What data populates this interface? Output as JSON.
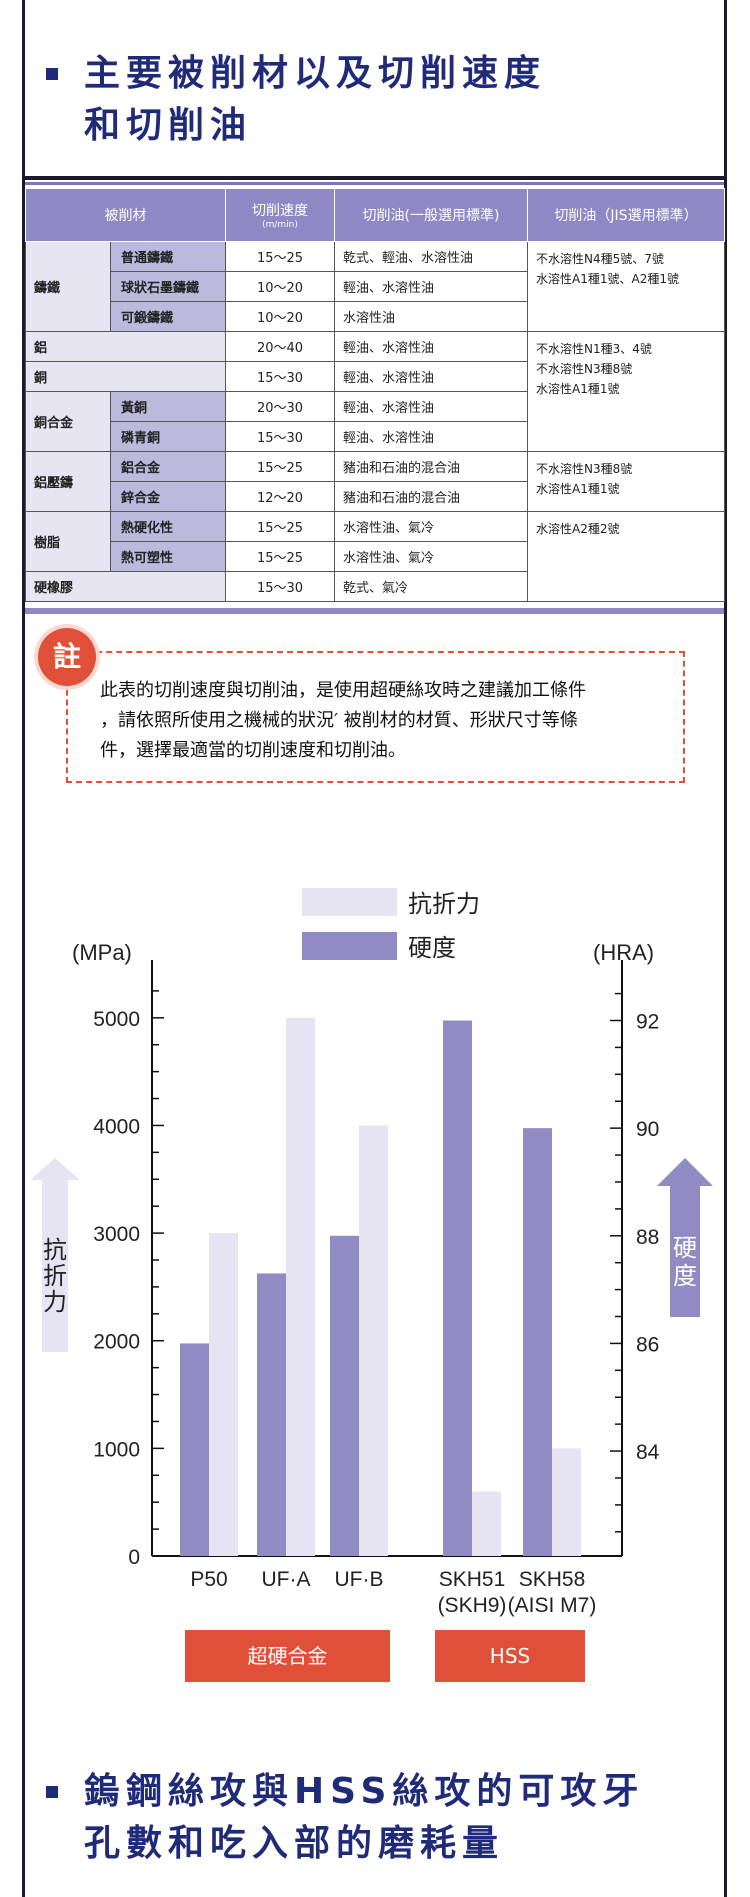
{
  "section1": {
    "title_line1": "主要被削材以及切削速度",
    "title_line2": "和切削油"
  },
  "table": {
    "headers": {
      "material": "被削材",
      "speed": "切削速度",
      "speed_unit": "(m/min)",
      "oil_general": "切削油(一般選用標準)",
      "oil_jis": "切削油（JIS選用標準）"
    },
    "rows": [
      {
        "group": "鑄鐵",
        "sub": "普通鑄鐵",
        "speed": "15〜25",
        "oil": "乾式、輕油、水溶性油"
      },
      {
        "sub": "球狀石墨鑄鐵",
        "speed": "10〜20",
        "oil": "輕油、水溶性油"
      },
      {
        "sub": "可鍛鑄鐵",
        "speed": "10〜20",
        "oil": "水溶性油"
      },
      {
        "group": "鋁",
        "speed": "20〜40",
        "oil": "輕油、水溶性油"
      },
      {
        "group": "銅",
        "speed": "15〜30",
        "oil": "輕油、水溶性油"
      },
      {
        "group": "銅合金",
        "sub": "黃銅",
        "speed": "20〜30",
        "oil": "輕油、水溶性油"
      },
      {
        "sub": "磷青銅",
        "speed": "15〜30",
        "oil": "輕油、水溶性油"
      },
      {
        "group": "鋁壓鑄",
        "sub": "鋁合金",
        "speed": "15〜25",
        "oil": "豬油和石油的混合油"
      },
      {
        "sub": "鋅合金",
        "speed": "12〜20",
        "oil": "豬油和石油的混合油"
      },
      {
        "group": "樹脂",
        "sub": "熱硬化性",
        "speed": "15〜25",
        "oil": "水溶性油、氣冷"
      },
      {
        "sub": "熱可塑性",
        "speed": "15〜25",
        "oil": "水溶性油、氣冷"
      },
      {
        "group": "硬橡膠",
        "speed": "15〜30",
        "oil": "乾式、氣冷"
      }
    ],
    "jis": [
      {
        "line1": "不水溶性N4種5號、7號",
        "line2": "水溶性A1種1號、A2種1號"
      },
      {
        "line1": "不水溶性N1種3、4號",
        "line2": "不水溶性N3種8號",
        "line3": "水溶性A1種1號"
      },
      {
        "line1": "不水溶性N3種8號",
        "line2": "水溶性A1種1號"
      },
      {
        "line1": "水溶性A2種2號"
      }
    ]
  },
  "note": {
    "badge": "註",
    "line1": "此表的切削速度與切削油，是使用超硬絲攻時之建議加工條件",
    "line2": "，請依照所使用之機械的狀況′ 被削材的材質、形狀尺寸等條",
    "line3": "件，選擇最適當的切削速度和切削油。"
  },
  "chart_data": {
    "type": "bar",
    "categories": [
      "P50",
      "UF·A",
      "UF·B",
      "SKH51\n(SKH9)",
      "SKH58\n(AISI M7)"
    ],
    "series": [
      {
        "name": "硬度",
        "axis": "right",
        "values": [
          86,
          87.3,
          88,
          92,
          90
        ]
      },
      {
        "name": "抗折力",
        "axis": "left",
        "values": [
          3000,
          5000,
          4000,
          600,
          1000
        ]
      }
    ],
    "left_axis": {
      "label": "(MPa)",
      "ticks": [
        "0",
        "1000",
        "2000",
        "3000",
        "4000",
        "5000"
      ],
      "range": [
        0,
        5500
      ],
      "arrow_label": "抗折力"
    },
    "right_axis": {
      "label": "(HRA)",
      "ticks": [
        "84",
        "86",
        "88",
        "90",
        "92"
      ],
      "range": [
        82.05,
        93.05
      ],
      "arrow_label": "硬度"
    },
    "groups": [
      {
        "label": "超硬合金",
        "members": [
          "P50",
          "UF·A",
          "UF·B"
        ]
      },
      {
        "label": "HSS",
        "members": [
          "SKH51\n(SKH9)",
          "SKH58\n(AISI M7)"
        ]
      }
    ],
    "colors": {
      "抗折力": "#e6e4f3",
      "硬度": "#918bc4"
    },
    "legend": "top"
  },
  "section2": {
    "title_line1": "鎢鋼絲攻與HSS絲攻的可攻牙",
    "title_line2": "孔數和吃入部的磨耗量"
  }
}
